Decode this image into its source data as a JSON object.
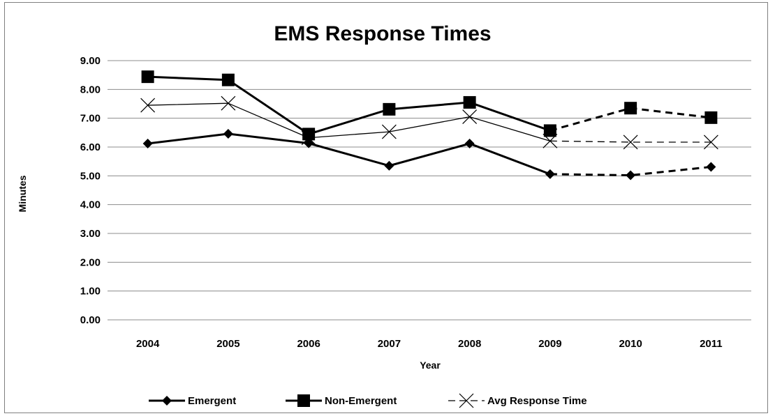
{
  "chart_data": {
    "type": "line",
    "title": "EMS Response Times",
    "xlabel": "Year",
    "ylabel": "Minutes",
    "categories": [
      "2004",
      "2005",
      "2006",
      "2007",
      "2008",
      "2009",
      "2010",
      "2011"
    ],
    "ylim": [
      0,
      9
    ],
    "yticks": [
      "0.00",
      "1.00",
      "2.00",
      "3.00",
      "4.00",
      "5.00",
      "6.00",
      "7.00",
      "8.00",
      "9.00"
    ],
    "grid": true,
    "legend_position": "bottom",
    "dashed_from_category": "2009",
    "series": [
      {
        "name": "Emergent",
        "marker": "diamond",
        "color": "#000000",
        "values": [
          6.12,
          6.46,
          6.13,
          5.35,
          6.12,
          5.06,
          5.02,
          5.31
        ]
      },
      {
        "name": "Non-Emergent",
        "marker": "square",
        "color": "#000000",
        "values": [
          8.44,
          8.33,
          6.45,
          7.31,
          7.55,
          6.57,
          7.35,
          7.02
        ]
      },
      {
        "name": "Avg Response Time",
        "marker": "x",
        "color": "#000000",
        "values": [
          7.45,
          7.52,
          6.32,
          6.53,
          7.05,
          6.21,
          6.17,
          6.17
        ]
      }
    ]
  }
}
